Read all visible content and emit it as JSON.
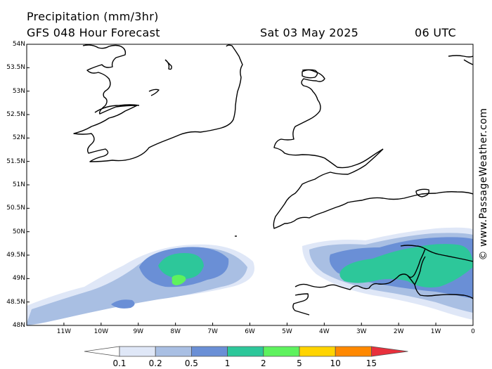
{
  "header": {
    "title": "Precipitation (mm/3hr)",
    "subtitle": "GFS 048 Hour Forecast",
    "date": "Sat 03 May 2025",
    "time": "06 UTC"
  },
  "map": {
    "lon_range": [
      -12,
      0
    ],
    "lat_range": [
      48,
      54
    ],
    "lat_labels": [
      "54N",
      "53.5N",
      "53N",
      "52.5N",
      "52N",
      "51.5N",
      "51N",
      "50.5N",
      "50N",
      "49.5N",
      "49N",
      "48.5N",
      "48N"
    ],
    "lon_labels": [
      "11W",
      "10W",
      "9W",
      "8W",
      "7W",
      "6W",
      "5W",
      "4W",
      "3W",
      "2W",
      "1W",
      "0"
    ]
  },
  "credit": "© www.PassageWeather.com",
  "legend": {
    "labels": [
      "0.1",
      "0.2",
      "0.5",
      "1",
      "2",
      "5",
      "10",
      "15"
    ],
    "colors": [
      "#ffffff",
      "#dfe7f7",
      "#a9bfe3",
      "#6a8fd6",
      "#2dc79a",
      "#5ef25e",
      "#ffd400",
      "#ff8800",
      "#e8303c"
    ]
  }
}
